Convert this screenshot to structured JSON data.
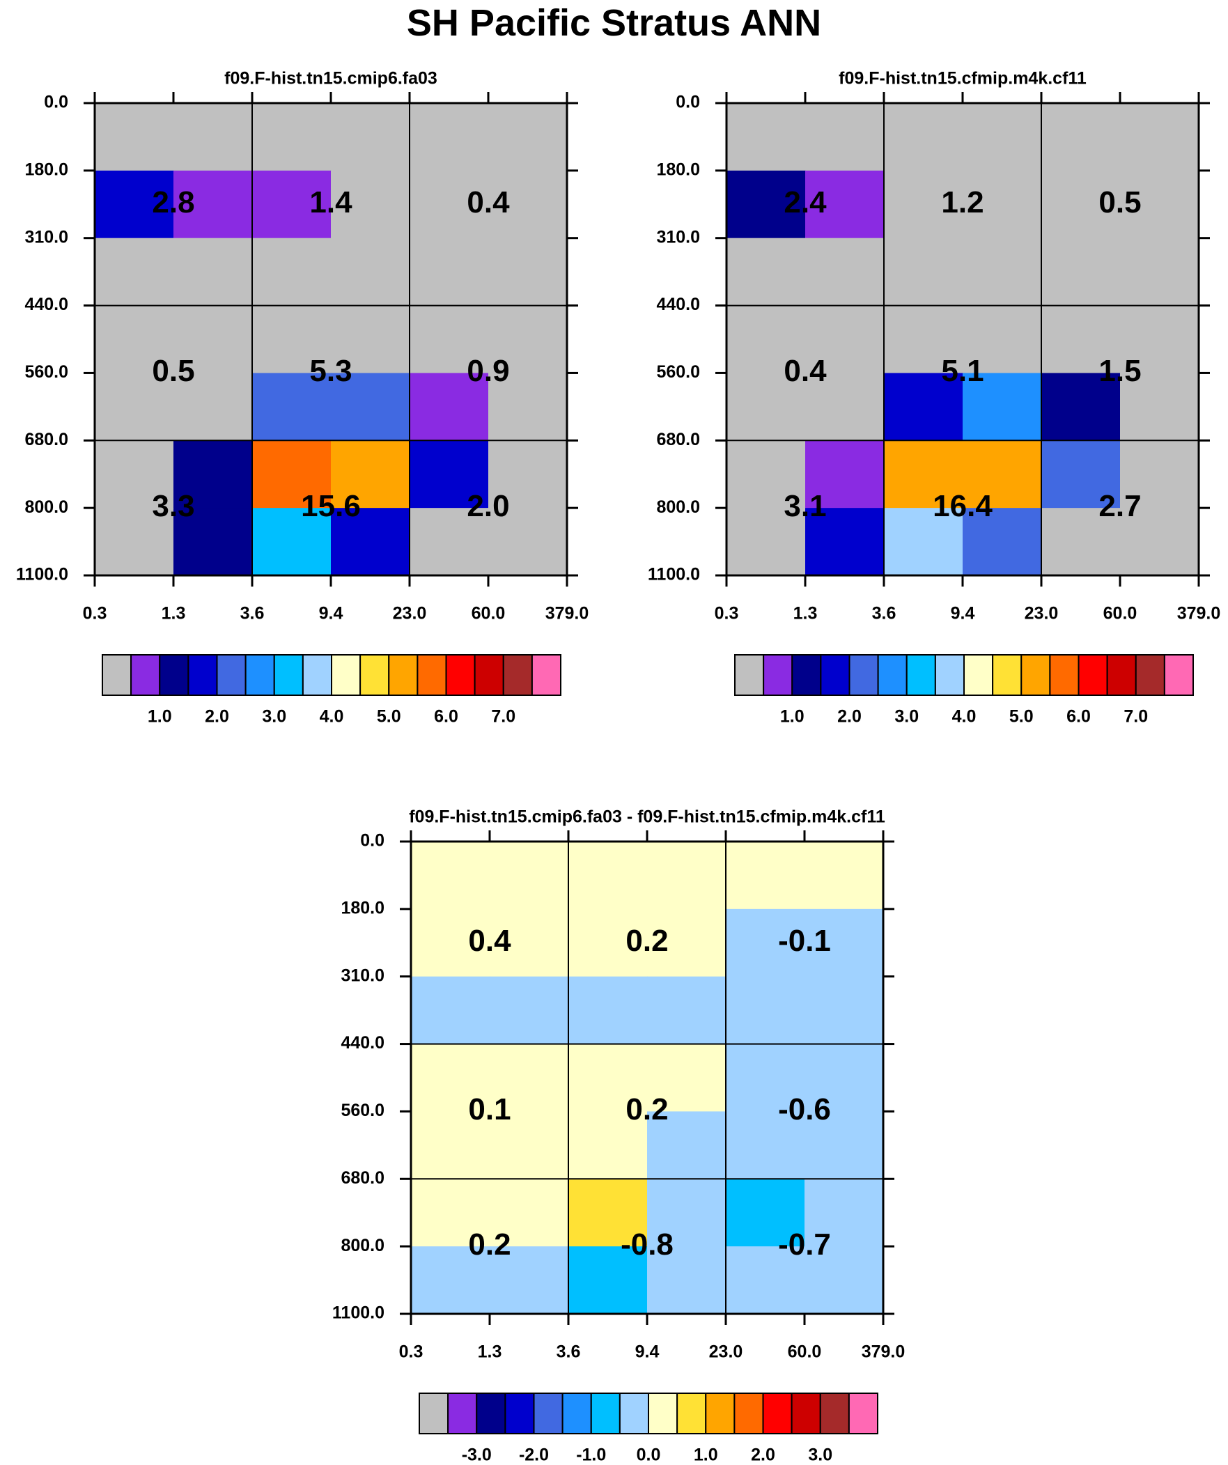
{
  "title": "SH Pacific Stratus ANN",
  "axes": {
    "x_ticks": [
      "0.3",
      "1.3",
      "3.6",
      "9.4",
      "23.0",
      "60.0",
      "379.0"
    ],
    "y_ticks": [
      "0.0",
      "180.0",
      "310.0",
      "440.0",
      "560.0",
      "680.0",
      "800.0",
      "1100.0"
    ]
  },
  "palette": [
    "#c0c0c0",
    "#8a2be2",
    "#00008b",
    "#0000cd",
    "#4169e1",
    "#1e90ff",
    "#00bfff",
    "#a0d2ff",
    "#ffffc8",
    "#ffe135",
    "#ffa500",
    "#ff6a00",
    "#ff0000",
    "#cd0000",
    "#a52a2a",
    "#ff69b4"
  ],
  "chart_data": [
    {
      "type": "heatmap",
      "panel": "top-left",
      "title": "f09.F-hist.tn15.cmip6.fa03",
      "x_ticks": [
        "0.3",
        "1.3",
        "3.6",
        "9.4",
        "23.0",
        "60.0",
        "379.0"
      ],
      "y_ticks": [
        "0.0",
        "180.0",
        "310.0",
        "440.0",
        "560.0",
        "680.0",
        "800.0",
        "1100.0"
      ],
      "cell_colors": [
        [
          "#c0c0c0",
          "#c0c0c0",
          "#c0c0c0",
          "#c0c0c0",
          "#c0c0c0",
          "#c0c0c0"
        ],
        [
          "#0000cd",
          "#8a2be2",
          "#8a2be2",
          "#c0c0c0",
          "#c0c0c0",
          "#c0c0c0"
        ],
        [
          "#c0c0c0",
          "#c0c0c0",
          "#c0c0c0",
          "#c0c0c0",
          "#c0c0c0",
          "#c0c0c0"
        ],
        [
          "#c0c0c0",
          "#c0c0c0",
          "#c0c0c0",
          "#c0c0c0",
          "#c0c0c0",
          "#c0c0c0"
        ],
        [
          "#c0c0c0",
          "#c0c0c0",
          "#4169e1",
          "#4169e1",
          "#8a2be2",
          "#c0c0c0"
        ],
        [
          "#c0c0c0",
          "#00008b",
          "#ff6a00",
          "#ffa500",
          "#0000cd",
          "#c0c0c0"
        ],
        [
          "#c0c0c0",
          "#00008b",
          "#00bfff",
          "#0000cd",
          "#c0c0c0",
          "#c0c0c0"
        ]
      ],
      "block_values": [
        [
          "2.8",
          "1.4",
          "0.4"
        ],
        [
          "0.5",
          "5.3",
          "0.9"
        ],
        [
          "3.3",
          "15.6",
          "2.0"
        ]
      ],
      "colorbar": {
        "colors": [
          "#c0c0c0",
          "#8a2be2",
          "#00008b",
          "#0000cd",
          "#4169e1",
          "#1e90ff",
          "#00bfff",
          "#a0d2ff",
          "#ffffc8",
          "#ffe135",
          "#ffa500",
          "#ff6a00",
          "#ff0000",
          "#cd0000",
          "#a52a2a",
          "#ff69b4"
        ],
        "labels": [
          "1.0",
          "2.0",
          "3.0",
          "4.0",
          "5.0",
          "6.0",
          "7.0"
        ],
        "label_positions": [
          2,
          4,
          6,
          8,
          10,
          12,
          14
        ]
      }
    },
    {
      "type": "heatmap",
      "panel": "top-right",
      "title": "f09.F-hist.tn15.cfmip.m4k.cf11",
      "x_ticks": [
        "0.3",
        "1.3",
        "3.6",
        "9.4",
        "23.0",
        "60.0",
        "379.0"
      ],
      "y_ticks": [
        "0.0",
        "180.0",
        "310.0",
        "440.0",
        "560.0",
        "680.0",
        "800.0",
        "1100.0"
      ],
      "cell_colors": [
        [
          "#c0c0c0",
          "#c0c0c0",
          "#c0c0c0",
          "#c0c0c0",
          "#c0c0c0",
          "#c0c0c0"
        ],
        [
          "#00008b",
          "#8a2be2",
          "#c0c0c0",
          "#c0c0c0",
          "#c0c0c0",
          "#c0c0c0"
        ],
        [
          "#c0c0c0",
          "#c0c0c0",
          "#c0c0c0",
          "#c0c0c0",
          "#c0c0c0",
          "#c0c0c0"
        ],
        [
          "#c0c0c0",
          "#c0c0c0",
          "#c0c0c0",
          "#c0c0c0",
          "#c0c0c0",
          "#c0c0c0"
        ],
        [
          "#c0c0c0",
          "#c0c0c0",
          "#0000cd",
          "#1e90ff",
          "#00008b",
          "#c0c0c0"
        ],
        [
          "#c0c0c0",
          "#8a2be2",
          "#ffa500",
          "#ffa500",
          "#4169e1",
          "#c0c0c0"
        ],
        [
          "#c0c0c0",
          "#0000cd",
          "#a0d2ff",
          "#4169e1",
          "#c0c0c0",
          "#c0c0c0"
        ]
      ],
      "block_values": [
        [
          "2.4",
          "1.2",
          "0.5"
        ],
        [
          "0.4",
          "5.1",
          "1.5"
        ],
        [
          "3.1",
          "16.4",
          "2.7"
        ]
      ],
      "colorbar": {
        "colors": [
          "#c0c0c0",
          "#8a2be2",
          "#00008b",
          "#0000cd",
          "#4169e1",
          "#1e90ff",
          "#00bfff",
          "#a0d2ff",
          "#ffffc8",
          "#ffe135",
          "#ffa500",
          "#ff6a00",
          "#ff0000",
          "#cd0000",
          "#a52a2a",
          "#ff69b4"
        ],
        "labels": [
          "1.0",
          "2.0",
          "3.0",
          "4.0",
          "5.0",
          "6.0",
          "7.0"
        ],
        "label_positions": [
          2,
          4,
          6,
          8,
          10,
          12,
          14
        ]
      }
    },
    {
      "type": "heatmap",
      "panel": "bottom",
      "title": "f09.F-hist.tn15.cmip6.fa03 - f09.F-hist.tn15.cfmip.m4k.cf11",
      "x_ticks": [
        "0.3",
        "1.3",
        "3.6",
        "9.4",
        "23.0",
        "60.0",
        "379.0"
      ],
      "y_ticks": [
        "0.0",
        "180.0",
        "310.0",
        "440.0",
        "560.0",
        "680.0",
        "800.0",
        "1100.0"
      ],
      "cell_colors": [
        [
          "#ffffc8",
          "#ffffc8",
          "#ffffc8",
          "#ffffc8",
          "#ffffc8",
          "#ffffc8"
        ],
        [
          "#ffffc8",
          "#ffffc8",
          "#ffffc8",
          "#ffffc8",
          "#a0d2ff",
          "#a0d2ff"
        ],
        [
          "#a0d2ff",
          "#a0d2ff",
          "#a0d2ff",
          "#a0d2ff",
          "#a0d2ff",
          "#a0d2ff"
        ],
        [
          "#ffffc8",
          "#ffffc8",
          "#ffffc8",
          "#ffffc8",
          "#a0d2ff",
          "#a0d2ff"
        ],
        [
          "#ffffc8",
          "#ffffc8",
          "#ffffc8",
          "#a0d2ff",
          "#a0d2ff",
          "#a0d2ff"
        ],
        [
          "#ffffc8",
          "#ffffc8",
          "#ffe135",
          "#a0d2ff",
          "#00bfff",
          "#a0d2ff"
        ],
        [
          "#a0d2ff",
          "#a0d2ff",
          "#00bfff",
          "#a0d2ff",
          "#a0d2ff",
          "#a0d2ff"
        ]
      ],
      "block_values": [
        [
          "0.4",
          "0.2",
          "-0.1"
        ],
        [
          "0.1",
          "0.2",
          "-0.6"
        ],
        [
          "0.2",
          "-0.8",
          "-0.7"
        ]
      ],
      "colorbar": {
        "colors": [
          "#c0c0c0",
          "#8a2be2",
          "#00008b",
          "#0000cd",
          "#4169e1",
          "#1e90ff",
          "#00bfff",
          "#a0d2ff",
          "#ffffc8",
          "#ffe135",
          "#ffa500",
          "#ff6a00",
          "#ff0000",
          "#cd0000",
          "#a52a2a",
          "#ff69b4"
        ],
        "labels": [
          "-3.0",
          "-2.0",
          "-1.0",
          "0.0",
          "1.0",
          "2.0",
          "3.0"
        ],
        "label_positions": [
          2,
          4,
          6,
          8,
          10,
          12,
          14
        ]
      }
    }
  ]
}
